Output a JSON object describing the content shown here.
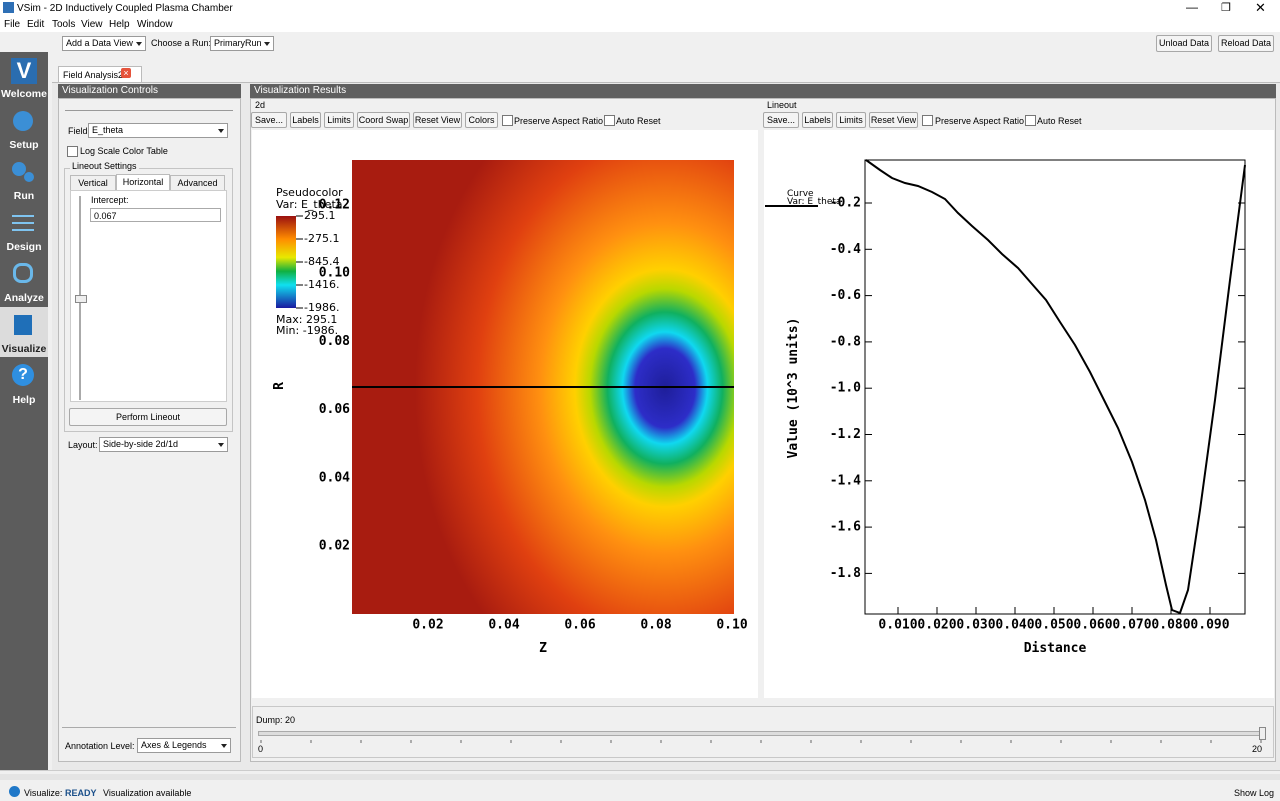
{
  "window": {
    "title": "VSim - 2D Inductively Coupled Plasma Chamber"
  },
  "menu": [
    "File",
    "Edit",
    "Tools",
    "View",
    "Help",
    "Window"
  ],
  "sidebar": [
    "Welcome",
    "Setup",
    "Run",
    "Design",
    "Analyze",
    "Visualize",
    "Help"
  ],
  "toolbar": {
    "data_view": "Add a Data View",
    "run_label": "Choose a Run:",
    "run": "PrimaryRun",
    "unload": "Unload Data",
    "reload": "Reload Data"
  },
  "tab": "Field Analysis2",
  "controls": {
    "header": "Visualization Controls",
    "field_label": "Field",
    "field": "E_theta",
    "log_scale": "Log Scale Color Table",
    "lineout_group": "Lineout Settings",
    "tabs": [
      "Vertical",
      "Horizontal",
      "Advanced"
    ],
    "intercept_label": "Intercept:",
    "intercept": "0.067",
    "perform": "Perform Lineout",
    "layout_label": "Layout:",
    "layout": "Side-by-side 2d/1d",
    "annotation_label": "Annotation Level:",
    "annotation": "Axes & Legends"
  },
  "results": {
    "header": "Visualization Results",
    "plot2d": {
      "group": "2d",
      "buttons": [
        "Save...",
        "Labels",
        "Limits",
        "Coord Swap",
        "Reset View",
        "Colors"
      ],
      "checks": [
        "Preserve Aspect Ratio",
        "Auto Reset"
      ],
      "legend_title": "Pseudocolor",
      "legend_var": "Var: E_theta",
      "legend_ticks": [
        "295.1",
        "-275.1",
        "-845.4",
        "-1416.",
        "-1986."
      ],
      "max": "Max:  295.1",
      "min": "Min: -1986.",
      "yticks": [
        "0.12",
        "0.10",
        "0.08",
        "0.06",
        "0.04",
        "0.02"
      ],
      "xticks": [
        "0.02",
        "0.04",
        "0.06",
        "0.08",
        "0.10"
      ],
      "ylabel": "R",
      "xlabel": "Z"
    },
    "lineout": {
      "group": "Lineout",
      "buttons": [
        "Save...",
        "Labels",
        "Limits",
        "Reset View"
      ],
      "checks": [
        "Preserve Aspect Ratio",
        "Auto Reset"
      ],
      "legend_title": "Curve",
      "legend_var": "Var: E_theta",
      "yticks": [
        "-0.2",
        "-0.4",
        "-0.6",
        "-0.8",
        "-1.0",
        "-1.2",
        "-1.4",
        "-1.6",
        "-1.8"
      ],
      "xticks": [
        "0.010",
        "0.020",
        "0.030",
        "0.040",
        "0.050",
        "0.060",
        "0.070",
        "0.080",
        "0.090"
      ],
      "xlabel": "Distance",
      "ylabel": "Value (10^3 units)"
    },
    "dump": {
      "label": "Dump: 20",
      "min": "0",
      "max": "20"
    }
  },
  "status": {
    "label": "Visualize:",
    "state": "READY",
    "message": "Visualization available",
    "show_log": "Show Log"
  }
}
